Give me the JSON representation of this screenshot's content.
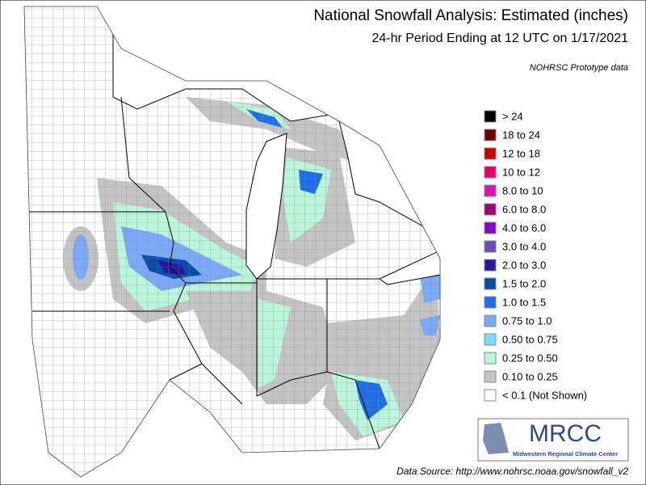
{
  "header": {
    "title": "National Snowfall Analysis: Estimated (inches)",
    "subtitle": "24-hr Period Ending at 12 UTC on 1/17/2021",
    "note": "NOHRSC Prototype data"
  },
  "legend": {
    "items": [
      {
        "label": "> 24",
        "color": "#000000"
      },
      {
        "label": "18 to 24",
        "color": "#6e0000"
      },
      {
        "label": "12 to 18",
        "color": "#cc0000"
      },
      {
        "label": "10 to 12",
        "color": "#e8006a"
      },
      {
        "label": "8.0 to 10",
        "color": "#dd11b4"
      },
      {
        "label": "6.0 to 8.0",
        "color": "#a0007c"
      },
      {
        "label": "4.0 to 6.0",
        "color": "#8a00cc"
      },
      {
        "label": "3.0 to 4.0",
        "color": "#6a4cb0"
      },
      {
        "label": "2.0 to 3.0",
        "color": "#2a14a0"
      },
      {
        "label": "1.5 to 2.0",
        "color": "#0a4aa8"
      },
      {
        "label": "1.0 to 1.5",
        "color": "#1e6ee8"
      },
      {
        "label": "0.75 to 1.0",
        "color": "#7aaaf5"
      },
      {
        "label": "0.50 to 0.75",
        "color": "#78dcf5"
      },
      {
        "label": "0.25 to 0.50",
        "color": "#b9f6dc"
      },
      {
        "label": "0.10 to 0.25",
        "color": "#c4c4c4"
      },
      {
        "label": "< 0.1 (Not Shown)",
        "color": "#ffffff"
      }
    ]
  },
  "logo": {
    "name": "MRCC",
    "subtitle": "Midwestern Regional Climate Center"
  },
  "footer": {
    "source": "Data Source: http://www.nohrsc.noaa.gov/snowfall_v2"
  }
}
